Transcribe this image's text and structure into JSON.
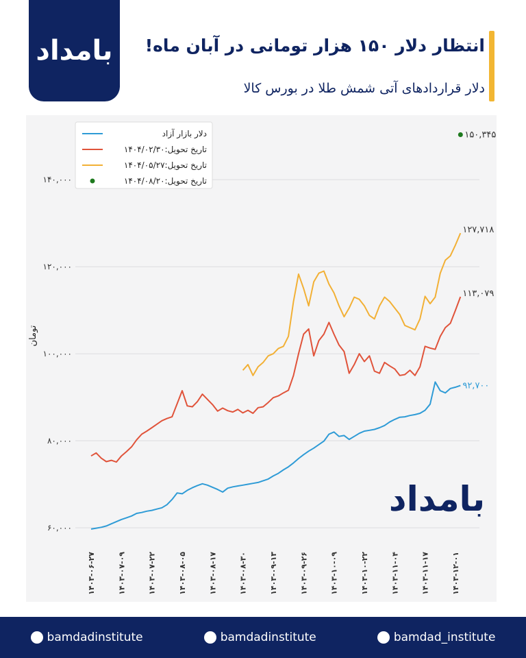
{
  "brand": "بامداد",
  "header": {
    "title": "انتظار دلار ۱۵۰ هزار تومانی در آبان ماه!",
    "subtitle": "دلار قراردادهای آتی شمش طلا در بورس کالا"
  },
  "footer": {
    "handles": [
      "bamdadinstitute",
      "bamdadinstitute",
      "bamdad_institute"
    ]
  },
  "chart_data": {
    "type": "line",
    "ylabel": "تومان",
    "grid": true,
    "legend": "top-left",
    "ylim": [
      57000,
      152000
    ],
    "yticks": [
      {
        "value": 60000,
        "label": "۶۰,۰۰۰"
      },
      {
        "value": 80000,
        "label": "۸۰,۰۰۰"
      },
      {
        "value": 100000,
        "label": "۱۰۰,۰۰۰"
      },
      {
        "value": 120000,
        "label": "۱۲۰,۰۰۰"
      },
      {
        "value": 140000,
        "label": "۱۴۰,۰۰۰"
      }
    ],
    "categories": [
      "۱۴۰۳-۰۶-۲۷",
      null,
      null,
      null,
      null,
      null,
      "۱۴۰۳-۰۷-۰۹",
      null,
      null,
      null,
      null,
      null,
      "۱۴۰۳-۰۷-۲۲",
      null,
      null,
      null,
      null,
      null,
      "۱۴۰۳-۰۸-۰۵",
      null,
      null,
      null,
      null,
      null,
      "۱۴۰۳-۰۸-۱۷",
      null,
      null,
      null,
      null,
      null,
      "۱۴۰۳-۰۸-۳۰",
      null,
      null,
      null,
      null,
      null,
      "۱۴۰۳-۰۹-۱۳",
      null,
      null,
      null,
      null,
      null,
      "۱۴۰۳-۰۹-۲۶",
      null,
      null,
      null,
      null,
      null,
      "۱۴۰۳-۱۰-۰۹",
      null,
      null,
      null,
      null,
      null,
      "۱۴۰۳-۱۰-۲۲",
      null,
      null,
      null,
      null,
      null,
      "۱۴۰۳-۱۱-۰۴",
      null,
      null,
      null,
      null,
      null,
      "۱۴۰۳-۱۱-۱۷",
      null,
      null,
      null,
      null,
      null,
      "۱۴۰۳-۱۲-۰۱",
      null
    ],
    "series": [
      {
        "name": "دلار بازار آزاد",
        "color": "#2e9bd6",
        "style": "line",
        "values": [
          59700,
          59900,
          60100,
          60400,
          60900,
          61400,
          61900,
          62300,
          62700,
          63300,
          63500,
          63800,
          64000,
          64300,
          64600,
          65300,
          66500,
          68000,
          67800,
          68600,
          69200,
          69700,
          70100,
          69800,
          69300,
          68800,
          68200,
          69100,
          69400,
          69600,
          69800,
          70000,
          70200,
          70400,
          70800,
          71200,
          71900,
          72500,
          73300,
          74000,
          74900,
          75900,
          76800,
          77600,
          78300,
          79100,
          79900,
          81500,
          82000,
          81000,
          81200,
          80300,
          81000,
          81700,
          82200,
          82400,
          82600,
          83000,
          83500,
          84300,
          84900,
          85400,
          85500,
          85800,
          86000,
          86300,
          87000,
          88400,
          93500,
          91500,
          91000,
          92000,
          92300,
          92700
        ],
        "value_labels": [
          null,
          null,
          null,
          null,
          null,
          null,
          null,
          null,
          null,
          null,
          null,
          null,
          null,
          null,
          null,
          null,
          null,
          null,
          null,
          null,
          null,
          null,
          null,
          null,
          null,
          null,
          null,
          null,
          null,
          null,
          null,
          null,
          null,
          null,
          null,
          null,
          null,
          null,
          null,
          null,
          null,
          null,
          null,
          null,
          null,
          null,
          null,
          null,
          null,
          null,
          null,
          null,
          null,
          null,
          null,
          null,
          null,
          null,
          null,
          null,
          null,
          null,
          null,
          null,
          null,
          null,
          null,
          null,
          null,
          null,
          null,
          null,
          null,
          "۹۲,۷۰۰"
        ]
      },
      {
        "name": "تاریخ تحویل:۱۴۰۴/۰۲/۳۰",
        "color": "#e0533a",
        "style": "line",
        "values": [
          76500,
          77200,
          76000,
          75200,
          75500,
          75100,
          76500,
          77500,
          78600,
          80200,
          81500,
          82200,
          83000,
          83800,
          84600,
          85100,
          85500,
          88500,
          91500,
          88000,
          87800,
          89000,
          90700,
          89500,
          88300,
          86800,
          87500,
          86900,
          86600,
          87200,
          86400,
          87000,
          86300,
          87600,
          87800,
          88800,
          89900,
          90300,
          91000,
          91600,
          95000,
          100000,
          104500,
          105700,
          99500,
          103000,
          104500,
          107200,
          104500,
          102000,
          100500,
          95500,
          97500,
          100000,
          98200,
          99500,
          96000,
          95500,
          98000,
          97200,
          96500,
          95000,
          95200,
          96200,
          95000,
          97000,
          101700,
          101300,
          101000,
          104000,
          106000,
          107000,
          110000,
          113079
        ],
        "value_labels": [
          null,
          null,
          null,
          null,
          null,
          null,
          null,
          null,
          null,
          null,
          null,
          null,
          null,
          null,
          null,
          null,
          null,
          null,
          null,
          null,
          null,
          null,
          null,
          null,
          null,
          null,
          null,
          null,
          null,
          null,
          null,
          null,
          null,
          null,
          null,
          null,
          null,
          null,
          null,
          null,
          null,
          null,
          null,
          null,
          null,
          null,
          null,
          null,
          null,
          null,
          null,
          null,
          null,
          null,
          null,
          null,
          null,
          null,
          null,
          null,
          null,
          null,
          null,
          null,
          null,
          null,
          null,
          null,
          null,
          null,
          null,
          null,
          null,
          "۱۱۳,۰۷۹"
        ]
      },
      {
        "name": "تاریخ تحویل:۱۴۰۴/۰۵/۲۷",
        "color": "#f2b035",
        "style": "line",
        "values": [
          null,
          null,
          null,
          null,
          null,
          null,
          null,
          null,
          null,
          null,
          null,
          null,
          null,
          null,
          null,
          null,
          null,
          null,
          null,
          null,
          null,
          null,
          null,
          null,
          null,
          null,
          null,
          null,
          null,
          null,
          96200,
          97500,
          95000,
          97000,
          98000,
          99500,
          100000,
          101200,
          101700,
          104000,
          112000,
          118300,
          115000,
          111000,
          116500,
          118500,
          119000,
          116000,
          114000,
          111000,
          108500,
          110500,
          113000,
          112500,
          111000,
          108800,
          108000,
          111000,
          113000,
          112000,
          110500,
          109000,
          106500,
          106000,
          105500,
          108000,
          113200,
          111500,
          113000,
          118500,
          121500,
          122500,
          125000,
          127718
        ],
        "value_labels": [
          null,
          null,
          null,
          null,
          null,
          null,
          null,
          null,
          null,
          null,
          null,
          null,
          null,
          null,
          null,
          null,
          null,
          null,
          null,
          null,
          null,
          null,
          null,
          null,
          null,
          null,
          null,
          null,
          null,
          null,
          null,
          null,
          null,
          null,
          null,
          null,
          null,
          null,
          null,
          null,
          null,
          null,
          null,
          null,
          null,
          null,
          null,
          null,
          null,
          null,
          null,
          null,
          null,
          null,
          null,
          null,
          null,
          null,
          null,
          null,
          null,
          null,
          null,
          null,
          null,
          null,
          null,
          null,
          null,
          null,
          null,
          null,
          null,
          "۱۲۷,۷۱۸"
        ]
      },
      {
        "name": "تاریخ تحویل:۱۴۰۴/۰۸/۲۰",
        "color": "#1e7a1e",
        "style": "point",
        "values": [
          null,
          null,
          null,
          null,
          null,
          null,
          null,
          null,
          null,
          null,
          null,
          null,
          null,
          null,
          null,
          null,
          null,
          null,
          null,
          null,
          null,
          null,
          null,
          null,
          null,
          null,
          null,
          null,
          null,
          null,
          null,
          null,
          null,
          null,
          null,
          null,
          null,
          null,
          null,
          null,
          null,
          null,
          null,
          null,
          null,
          null,
          null,
          null,
          null,
          null,
          null,
          null,
          null,
          null,
          null,
          null,
          null,
          null,
          null,
          null,
          null,
          null,
          null,
          null,
          null,
          null,
          null,
          null,
          null,
          null,
          null,
          null,
          null,
          150345
        ],
        "value_labels": [
          null,
          null,
          null,
          null,
          null,
          null,
          null,
          null,
          null,
          null,
          null,
          null,
          null,
          null,
          null,
          null,
          null,
          null,
          null,
          null,
          null,
          null,
          null,
          null,
          null,
          null,
          null,
          null,
          null,
          null,
          null,
          null,
          null,
          null,
          null,
          null,
          null,
          null,
          null,
          null,
          null,
          null,
          null,
          null,
          null,
          null,
          null,
          null,
          null,
          null,
          null,
          null,
          null,
          null,
          null,
          null,
          null,
          null,
          null,
          null,
          null,
          null,
          null,
          null,
          null,
          null,
          null,
          null,
          null,
          null,
          null,
          null,
          null,
          "۱۵۰,۳۴۵"
        ]
      }
    ]
  }
}
